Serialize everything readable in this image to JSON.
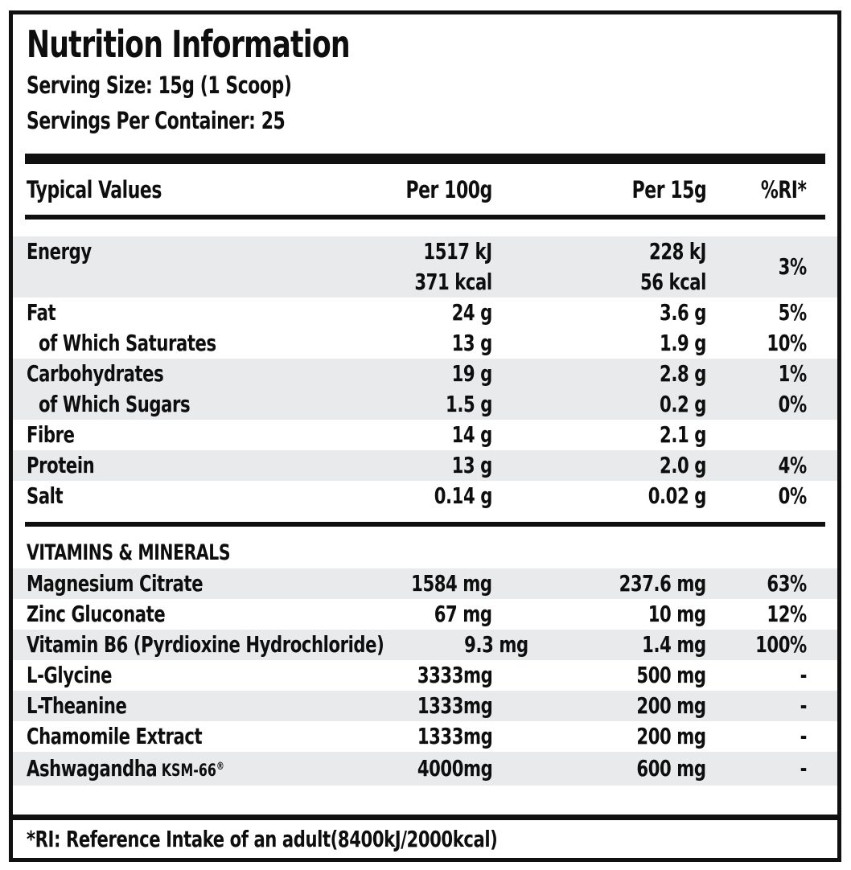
{
  "header": {
    "title": "Nutrition Information",
    "serving_size": "Serving Size: 15g (1 Scoop)",
    "servings_per_container": "Servings Per Container: 25"
  },
  "table": {
    "columns": {
      "name": "Typical Values",
      "per100": "Per 100g",
      "per15": "Per 15g",
      "ri": "%RI*"
    },
    "rows": [
      {
        "name": "Energy",
        "per100": [
          "1517 kJ",
          "371 kcal"
        ],
        "per15": [
          "228 kJ",
          "56 kcal"
        ],
        "ri": "3%",
        "shaded": true,
        "indent": false
      },
      {
        "name": "Fat",
        "per100": "24 g",
        "per15": "3.6 g",
        "ri": "5%",
        "shaded": false,
        "indent": false
      },
      {
        "name": "of Which Saturates",
        "per100": "13 g",
        "per15": "1.9 g",
        "ri": "10%",
        "shaded": false,
        "indent": true
      },
      {
        "name": "Carbohydrates",
        "per100": "19 g",
        "per15": "2.8 g",
        "ri": "1%",
        "shaded": true,
        "indent": false
      },
      {
        "name": "of Which Sugars",
        "per100": "1.5 g",
        "per15": "0.2 g",
        "ri": "0%",
        "shaded": true,
        "indent": true
      },
      {
        "name": "Fibre",
        "per100": "14 g",
        "per15": "2.1 g",
        "ri": "",
        "shaded": false,
        "indent": false
      },
      {
        "name": "Protein",
        "per100": "13 g",
        "per15": "2.0 g",
        "ri": "4%",
        "shaded": true,
        "indent": false
      },
      {
        "name": "Salt",
        "per100": "0.14 g",
        "per15": "0.02 g",
        "ri": "0%",
        "shaded": false,
        "indent": false
      }
    ]
  },
  "vitamins": {
    "heading": "VITAMINS & MINERALS",
    "rows": [
      {
        "name": "Magnesium Citrate",
        "per100": "1584 mg",
        "per15": "237.6 mg",
        "ri": "63%",
        "shaded": true,
        "indent": false
      },
      {
        "name": "Zinc Gluconate",
        "per100": "67 mg",
        "per15": "10 mg",
        "ri": "12%",
        "shaded": false,
        "indent": false
      },
      {
        "name": "Vitamin B6 (Pyrdioxine Hydrochloride)",
        "per100": "9.3 mg",
        "per15": "1.4 mg",
        "ri": "100%",
        "shaded": true,
        "indent": false
      },
      {
        "name": "L-Glycine",
        "per100": "3333mg",
        "per15": "500 mg",
        "ri": "-",
        "shaded": false,
        "indent": false
      },
      {
        "name": "L-Theanine",
        "per100": "1333mg",
        "per15": "200 mg",
        "ri": "-",
        "shaded": true,
        "indent": false
      },
      {
        "name": "Chamomile Extract",
        "per100": "1333mg",
        "per15": "200 mg",
        "ri": "-",
        "shaded": false,
        "indent": false
      },
      {
        "name": "Ashwagandha",
        "suffix": "KSM-66",
        "suffix_sup": "®",
        "per100": "4000mg",
        "per15": "600 mg",
        "ri": "-",
        "shaded": true,
        "indent": false
      }
    ]
  },
  "footer": {
    "note": "*RI: Reference Intake of an adult(8400kJ/2000kcal)"
  },
  "colors": {
    "ink": "#101010",
    "row_shade": "#e9eaeb",
    "background": "#ffffff"
  }
}
